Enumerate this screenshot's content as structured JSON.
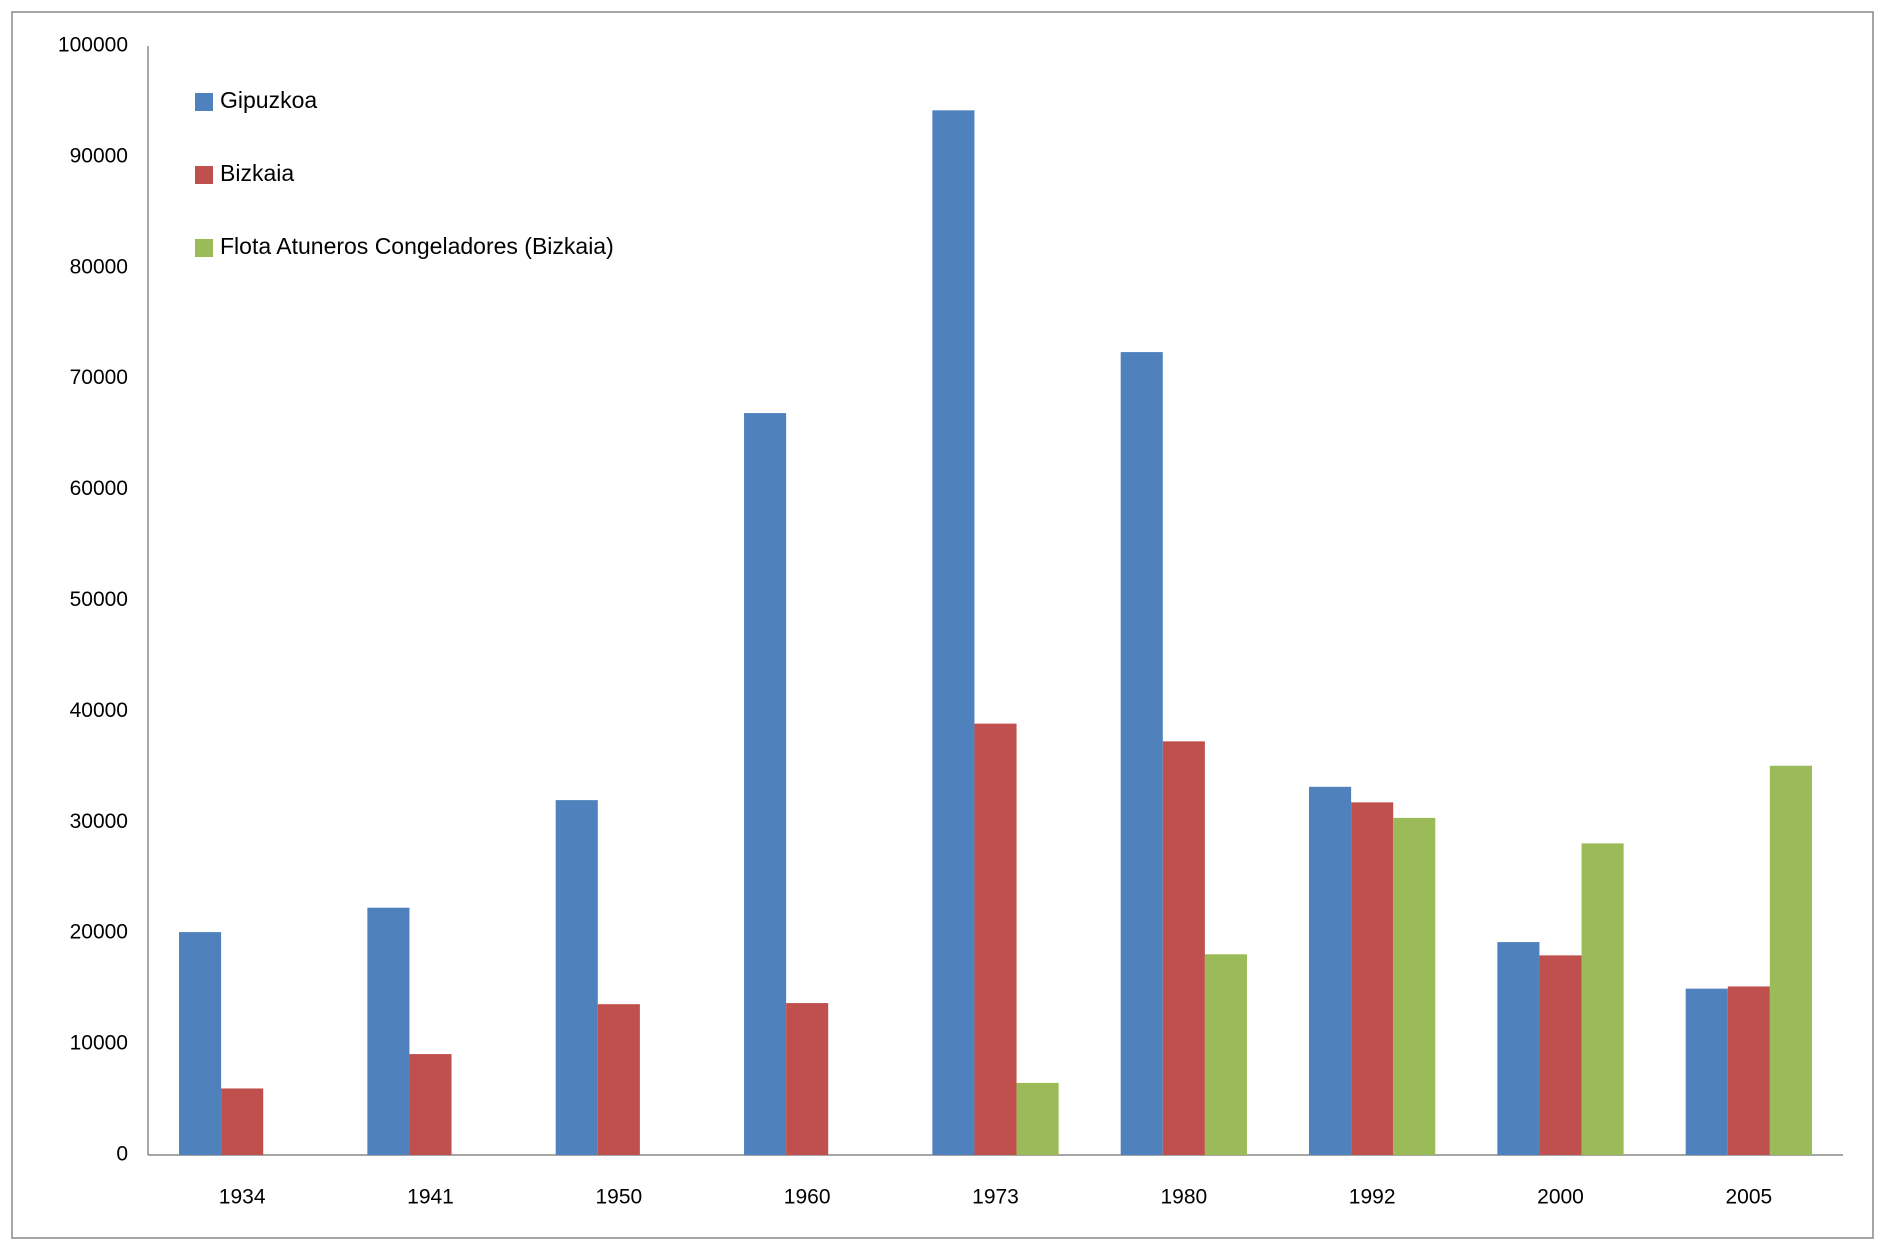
{
  "chart_data": {
    "type": "bar",
    "categories": [
      "1934",
      "1941",
      "1950",
      "1960",
      "1973",
      "1980",
      "1992",
      "2000",
      "2005"
    ],
    "series": [
      {
        "name": "Gipuzkoa",
        "color": "#4f81bd",
        "values": [
          20100,
          22300,
          32000,
          66900,
          94200,
          72400,
          33200,
          19200,
          15000
        ]
      },
      {
        "name": "Bizkaia",
        "color": "#c0504d",
        "values": [
          6000,
          9100,
          13600,
          13700,
          38900,
          37300,
          31800,
          18000,
          15200
        ]
      },
      {
        "name": "Flota Atuneros Congeladores (Bizkaia)",
        "color": "#9bbb59",
        "values": [
          null,
          null,
          null,
          null,
          6500,
          18100,
          30400,
          28100,
          35100
        ]
      }
    ],
    "ylim": [
      0,
      100000
    ],
    "yticks": [
      0,
      10000,
      20000,
      30000,
      40000,
      50000,
      60000,
      70000,
      80000,
      90000,
      100000
    ],
    "grid": false,
    "legend": "top-left"
  }
}
